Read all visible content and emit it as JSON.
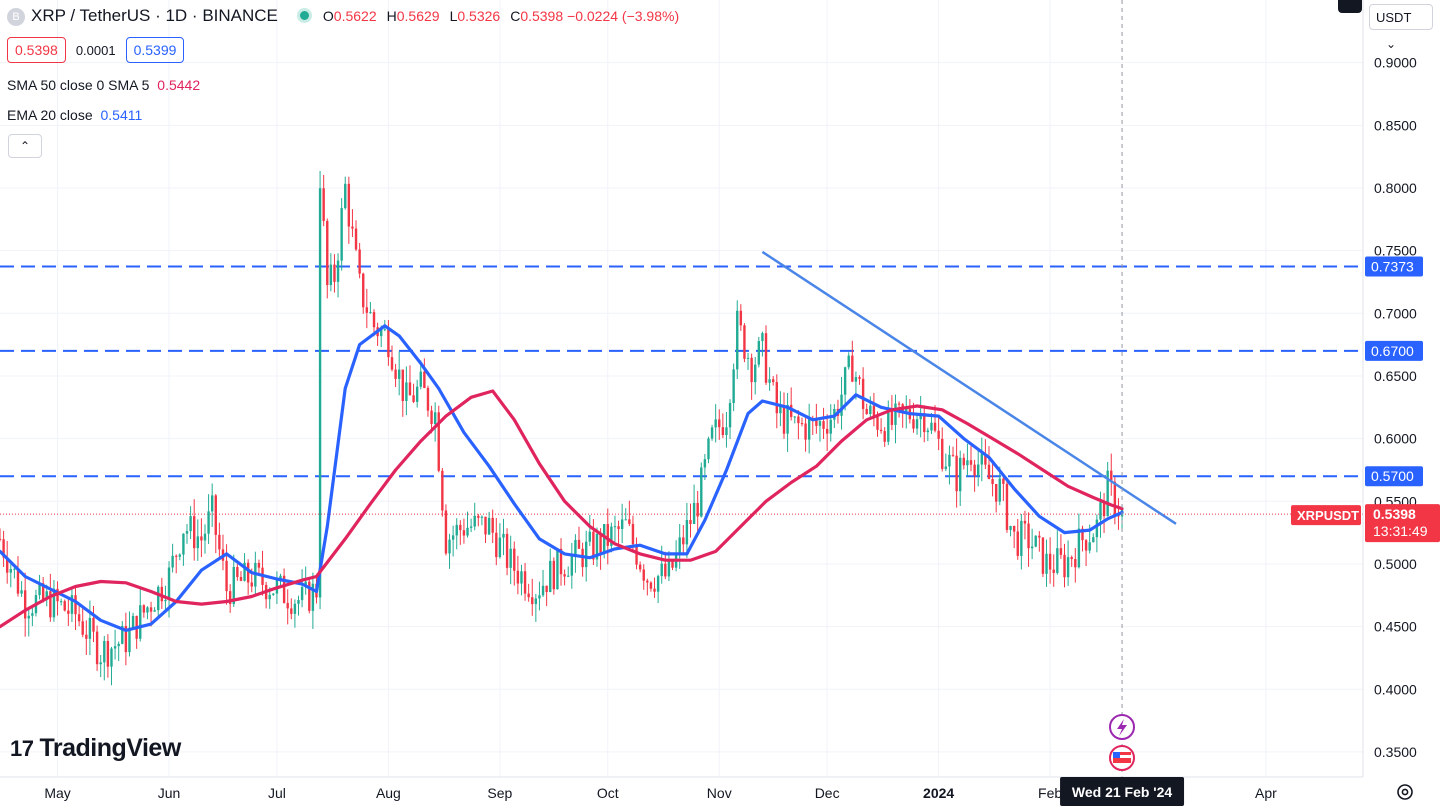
{
  "header": {
    "symbol_initial": "B",
    "title": "XRP / TetherUS · 1D · BINANCE",
    "ohlc": [
      {
        "k": "O",
        "v": "0.5622"
      },
      {
        "k": "H",
        "v": "0.5629"
      },
      {
        "k": "L",
        "v": "0.5326"
      },
      {
        "k": "C",
        "v": "0.5398"
      }
    ],
    "change": "−0.0224 (−3.98%)",
    "sell_price": "0.5398",
    "spread": "0.0001",
    "buy_price": "0.5399"
  },
  "indicators": {
    "sma_label": "SMA 50 close 0 SMA 5",
    "sma_value": "0.5442",
    "ema_label": "EMA 20 close",
    "ema_value": "0.5411",
    "collapse_glyph": "⌃"
  },
  "currency_selector": {
    "label": "USDT",
    "chevron": "⌄"
  },
  "branding": {
    "logo_mark": "17",
    "logo_text": "TradingView"
  },
  "crosshair": {
    "date_label": "Wed 21 Feb '24"
  },
  "price_badge": {
    "symbol": "XRPUSDT",
    "price": "0.5398",
    "countdown": "13:31:49"
  },
  "colors": {
    "up": "#22ab94",
    "down": "#f23645",
    "ema": "#2962ff",
    "sma": "#e0245e",
    "level": "#2962ff",
    "trendline": "#4a86e8"
  },
  "chart_data": {
    "type": "candlestick",
    "title": "XRP / TetherUS · 1D · BINANCE",
    "y_ticks": [
      0.35,
      0.4,
      0.45,
      0.5,
      0.55,
      0.6,
      0.65,
      0.7,
      0.75,
      0.8,
      0.85,
      0.9
    ],
    "ylim": [
      0.33,
      0.95
    ],
    "x_ticks": [
      {
        "date": "2023-05-01",
        "label": "May"
      },
      {
        "date": "2023-06-01",
        "label": "Jun"
      },
      {
        "date": "2023-07-01",
        "label": "Jul"
      },
      {
        "date": "2023-08-01",
        "label": "Aug"
      },
      {
        "date": "2023-09-01",
        "label": "Sep"
      },
      {
        "date": "2023-10-01",
        "label": "Oct"
      },
      {
        "date": "2023-11-01",
        "label": "Nov"
      },
      {
        "date": "2023-12-01",
        "label": "Dec"
      },
      {
        "date": "2024-01-01",
        "label": "2024"
      },
      {
        "date": "2024-02-01",
        "label": "Feb"
      },
      {
        "date": "2024-04-01",
        "label": "Apr"
      }
    ],
    "xlim": [
      "2023-04-15",
      "2024-04-28"
    ],
    "horizontal_levels": [
      {
        "value": 0.7373,
        "label": "0.7373"
      },
      {
        "value": 0.67,
        "label": "0.6700"
      },
      {
        "value": 0.57,
        "label": "0.5700"
      }
    ],
    "trendline": {
      "start": {
        "date": "2023-11-13",
        "value": 0.749
      },
      "end": {
        "date": "2024-03-07",
        "value": 0.532
      }
    },
    "last_price": 0.5398,
    "crosshair_date": "2024-02-21",
    "price_path": [
      [
        "2023-04-15",
        0.52
      ],
      [
        "2023-04-22",
        0.47
      ],
      [
        "2023-04-29",
        0.47
      ],
      [
        "2023-05-06",
        0.46
      ],
      [
        "2023-05-13",
        0.43
      ],
      [
        "2023-05-20",
        0.44
      ],
      [
        "2023-05-27",
        0.47
      ],
      [
        "2023-06-01",
        0.49
      ],
      [
        "2023-06-05",
        0.53
      ],
      [
        "2023-06-10",
        0.52
      ],
      [
        "2023-06-13",
        0.54
      ],
      [
        "2023-06-17",
        0.48
      ],
      [
        "2023-06-24",
        0.49
      ],
      [
        "2023-07-01",
        0.48
      ],
      [
        "2023-07-08",
        0.47
      ],
      [
        "2023-07-12",
        0.48
      ],
      [
        "2023-07-13",
        0.81
      ],
      [
        "2023-07-15",
        0.72
      ],
      [
        "2023-07-17",
        0.73
      ],
      [
        "2023-07-20",
        0.8
      ],
      [
        "2023-07-24",
        0.72
      ],
      [
        "2023-07-28",
        0.69
      ],
      [
        "2023-08-01",
        0.68
      ],
      [
        "2023-08-06",
        0.63
      ],
      [
        "2023-08-10",
        0.64
      ],
      [
        "2023-08-14",
        0.62
      ],
      [
        "2023-08-17",
        0.52
      ],
      [
        "2023-08-22",
        0.53
      ],
      [
        "2023-08-29",
        0.53
      ],
      [
        "2023-09-04",
        0.5
      ],
      [
        "2023-09-11",
        0.48
      ],
      [
        "2023-09-18",
        0.5
      ],
      [
        "2023-09-25",
        0.51
      ],
      [
        "2023-10-01",
        0.52
      ],
      [
        "2023-10-06",
        0.53
      ],
      [
        "2023-10-12",
        0.49
      ],
      [
        "2023-10-18",
        0.49
      ],
      [
        "2023-10-22",
        0.52
      ],
      [
        "2023-10-26",
        0.55
      ],
      [
        "2023-10-30",
        0.6
      ],
      [
        "2023-11-03",
        0.62
      ],
      [
        "2023-11-06",
        0.69
      ],
      [
        "2023-11-10",
        0.66
      ],
      [
        "2023-11-13",
        0.67
      ],
      [
        "2023-11-17",
        0.62
      ],
      [
        "2023-11-22",
        0.61
      ],
      [
        "2023-11-28",
        0.61
      ],
      [
        "2023-12-03",
        0.62
      ],
      [
        "2023-12-08",
        0.66
      ],
      [
        "2023-12-12",
        0.62
      ],
      [
        "2023-12-18",
        0.61
      ],
      [
        "2023-12-24",
        0.62
      ],
      [
        "2023-12-28",
        0.62
      ],
      [
        "2024-01-02",
        0.59
      ],
      [
        "2024-01-06",
        0.57
      ],
      [
        "2024-01-10",
        0.59
      ],
      [
        "2024-01-14",
        0.57
      ],
      [
        "2024-01-18",
        0.56
      ],
      [
        "2024-01-22",
        0.52
      ],
      [
        "2024-01-26",
        0.52
      ],
      [
        "2024-01-31",
        0.5
      ],
      [
        "2024-02-05",
        0.5
      ],
      [
        "2024-02-10",
        0.52
      ],
      [
        "2024-02-14",
        0.53
      ],
      [
        "2024-02-17",
        0.56
      ],
      [
        "2024-02-21",
        0.54
      ]
    ],
    "series": [
      {
        "name": "EMA 20 close",
        "color": "#2962ff",
        "points": [
          [
            "2023-04-15",
            0.51
          ],
          [
            "2023-04-22",
            0.49
          ],
          [
            "2023-04-29",
            0.48
          ],
          [
            "2023-05-06",
            0.47
          ],
          [
            "2023-05-13",
            0.455
          ],
          [
            "2023-05-20",
            0.447
          ],
          [
            "2023-05-27",
            0.452
          ],
          [
            "2023-06-03",
            0.47
          ],
          [
            "2023-06-10",
            0.495
          ],
          [
            "2023-06-17",
            0.508
          ],
          [
            "2023-06-24",
            0.493
          ],
          [
            "2023-07-01",
            0.488
          ],
          [
            "2023-07-08",
            0.484
          ],
          [
            "2023-07-12",
            0.478
          ],
          [
            "2023-07-15",
            0.53
          ],
          [
            "2023-07-20",
            0.64
          ],
          [
            "2023-07-24",
            0.675
          ],
          [
            "2023-07-31",
            0.69
          ],
          [
            "2023-08-04",
            0.682
          ],
          [
            "2023-08-10",
            0.66
          ],
          [
            "2023-08-15",
            0.64
          ],
          [
            "2023-08-22",
            0.605
          ],
          [
            "2023-08-29",
            0.578
          ],
          [
            "2023-09-05",
            0.548
          ],
          [
            "2023-09-12",
            0.52
          ],
          [
            "2023-09-19",
            0.508
          ],
          [
            "2023-09-26",
            0.505
          ],
          [
            "2023-10-03",
            0.512
          ],
          [
            "2023-10-10",
            0.515
          ],
          [
            "2023-10-17",
            0.508
          ],
          [
            "2023-10-23",
            0.508
          ],
          [
            "2023-10-28",
            0.535
          ],
          [
            "2023-11-03",
            0.575
          ],
          [
            "2023-11-09",
            0.62
          ],
          [
            "2023-11-13",
            0.63
          ],
          [
            "2023-11-20",
            0.625
          ],
          [
            "2023-11-27",
            0.615
          ],
          [
            "2023-12-03",
            0.618
          ],
          [
            "2023-12-09",
            0.635
          ],
          [
            "2023-12-16",
            0.625
          ],
          [
            "2023-12-24",
            0.62
          ],
          [
            "2024-01-01",
            0.618
          ],
          [
            "2024-01-08",
            0.6
          ],
          [
            "2024-01-15",
            0.585
          ],
          [
            "2024-01-22",
            0.56
          ],
          [
            "2024-01-29",
            0.538
          ],
          [
            "2024-02-05",
            0.525
          ],
          [
            "2024-02-12",
            0.527
          ],
          [
            "2024-02-17",
            0.536
          ],
          [
            "2024-02-21",
            0.5411
          ]
        ]
      },
      {
        "name": "SMA 50 close 0 SMA 5",
        "color": "#e0245e",
        "points": [
          [
            "2023-04-15",
            0.45
          ],
          [
            "2023-04-22",
            0.463
          ],
          [
            "2023-04-29",
            0.474
          ],
          [
            "2023-05-06",
            0.482
          ],
          [
            "2023-05-13",
            0.486
          ],
          [
            "2023-05-20",
            0.485
          ],
          [
            "2023-05-27",
            0.478
          ],
          [
            "2023-06-03",
            0.47
          ],
          [
            "2023-06-10",
            0.468
          ],
          [
            "2023-06-17",
            0.47
          ],
          [
            "2023-06-24",
            0.474
          ],
          [
            "2023-07-01",
            0.481
          ],
          [
            "2023-07-08",
            0.487
          ],
          [
            "2023-07-12",
            0.49
          ],
          [
            "2023-07-20",
            0.52
          ],
          [
            "2023-07-27",
            0.548
          ],
          [
            "2023-08-03",
            0.575
          ],
          [
            "2023-08-10",
            0.598
          ],
          [
            "2023-08-17",
            0.618
          ],
          [
            "2023-08-24",
            0.633
          ],
          [
            "2023-08-30",
            0.638
          ],
          [
            "2023-09-05",
            0.615
          ],
          [
            "2023-09-12",
            0.58
          ],
          [
            "2023-09-19",
            0.55
          ],
          [
            "2023-09-26",
            0.53
          ],
          [
            "2023-10-03",
            0.516
          ],
          [
            "2023-10-10",
            0.508
          ],
          [
            "2023-10-17",
            0.503
          ],
          [
            "2023-10-24",
            0.503
          ],
          [
            "2023-10-31",
            0.51
          ],
          [
            "2023-11-07",
            0.53
          ],
          [
            "2023-11-14",
            0.55
          ],
          [
            "2023-11-21",
            0.565
          ],
          [
            "2023-11-28",
            0.578
          ],
          [
            "2023-12-05",
            0.598
          ],
          [
            "2023-12-12",
            0.615
          ],
          [
            "2023-12-19",
            0.623
          ],
          [
            "2023-12-26",
            0.626
          ],
          [
            "2024-01-02",
            0.623
          ],
          [
            "2024-01-09",
            0.612
          ],
          [
            "2024-01-16",
            0.6
          ],
          [
            "2024-01-23",
            0.588
          ],
          [
            "2024-01-30",
            0.575
          ],
          [
            "2024-02-06",
            0.562
          ],
          [
            "2024-02-13",
            0.553
          ],
          [
            "2024-02-18",
            0.547
          ],
          [
            "2024-02-21",
            0.5442
          ]
        ]
      }
    ]
  }
}
